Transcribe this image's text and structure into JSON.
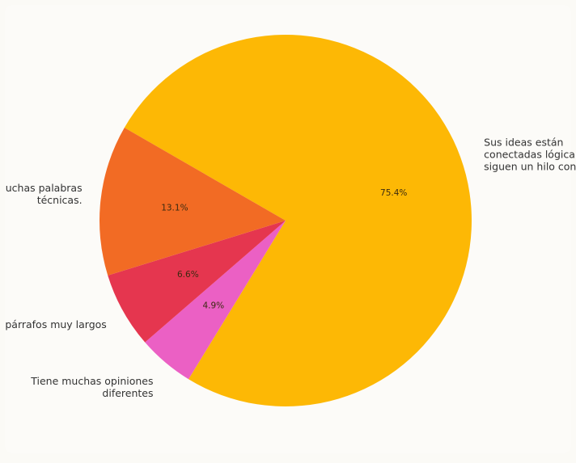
{
  "chart_data": {
    "type": "pie",
    "title": "",
    "start_angle_deg": 150,
    "direction": "clockwise",
    "slices": [
      {
        "label_lines": [
          "Sus ideas están",
          "conectadas lógicamente y",
          "siguen un hilo conductor"
        ],
        "value": 75.4,
        "pct_label": "75.4%",
        "color": "#fdb805"
      },
      {
        "label_lines": [
          "Tiene muchas opiniones",
          "diferentes"
        ],
        "value": 4.9,
        "pct_label": "4.9%",
        "color": "#eb60c4"
      },
      {
        "label_lines": [
          "Tiene párrafos muy largos"
        ],
        "value": 6.6,
        "pct_label": "6.6%",
        "color": "#e5364f"
      },
      {
        "label_lines": [
          "Utiliza muchas palabras",
          "técnicas."
        ],
        "value": 13.1,
        "pct_label": "13.1%",
        "color": "#f26b24"
      }
    ]
  }
}
